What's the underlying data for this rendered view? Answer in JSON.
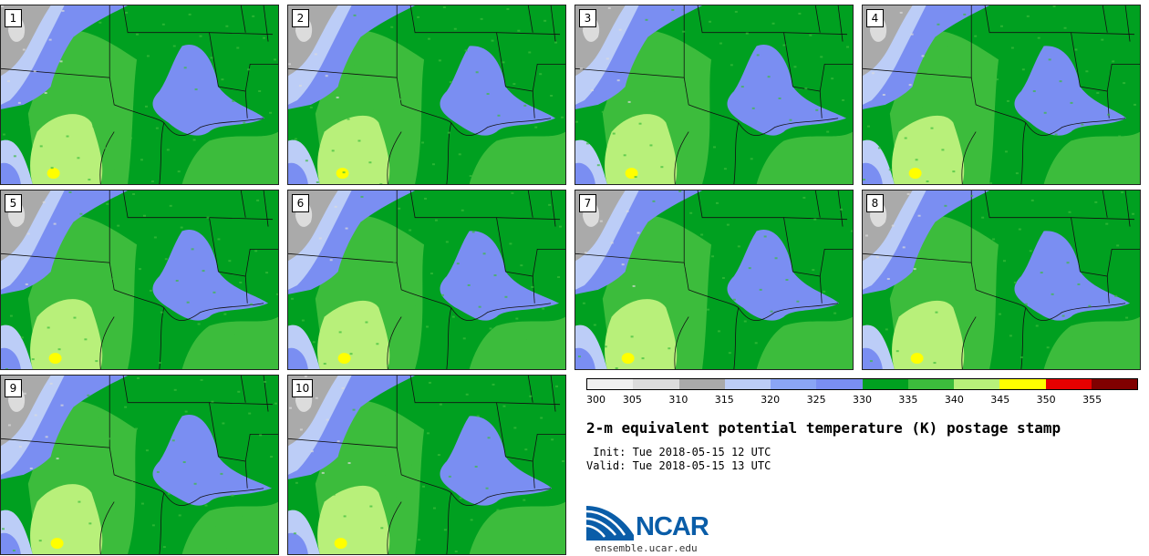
{
  "title": "2-m equivalent potential temperature (K) postage stamp",
  "init": " Init: Tue 2018-05-15 12 UTC",
  "valid": "Valid: Tue 2018-05-15 13 UTC",
  "site": "ensemble.ucar.edu",
  "logo": "NCAR",
  "members": [
    "1",
    "2",
    "3",
    "4",
    "5",
    "6",
    "7",
    "8",
    "9",
    "10"
  ],
  "colorbar": {
    "ticks": [
      "300",
      "305",
      "310",
      "315",
      "320",
      "325",
      "330",
      "335",
      "340",
      "345",
      "350",
      "355"
    ],
    "colors": [
      "#f0f0f0",
      "#dcdcdc",
      "#aaaaaa",
      "#bccdf7",
      "#8aa5f5",
      "#7a8ef2",
      "#00a020",
      "#3cbc3c",
      "#b8f07a",
      "#ffff00",
      "#e60000",
      "#800000"
    ]
  },
  "palette": {
    "dark_green": "#00a020",
    "green": "#3cbc3c",
    "light_green": "#b8f07a",
    "blue": "#7a8ef2",
    "light_blue": "#bccdf7",
    "gray": "#aaaaaa",
    "light_gray": "#dcdcdc",
    "yellow": "#ffff00"
  }
}
